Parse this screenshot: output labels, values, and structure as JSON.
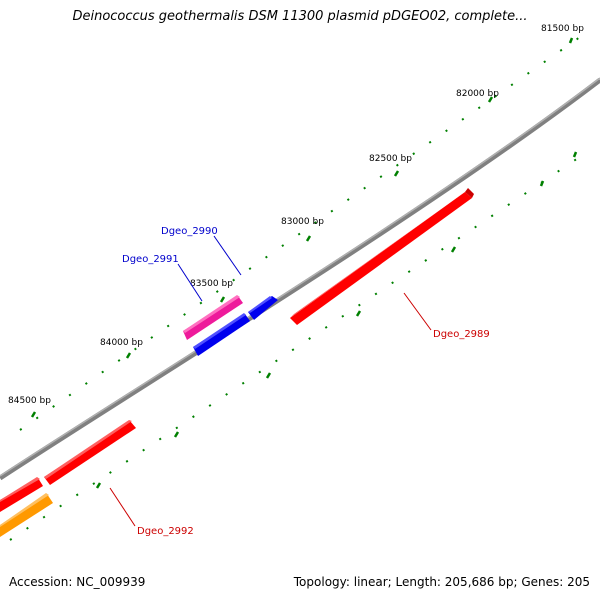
{
  "title": "Deinococcus geothermalis DSM 11300 plasmid pDGEO02, complete...",
  "footer": {
    "accession_label": "Accession: NC_009939",
    "summary_label": "Topology: linear; Length: 205,686 bp; Genes: 205"
  },
  "scale_ticks": [
    {
      "label": "81500 bp"
    },
    {
      "label": "82000 bp"
    },
    {
      "label": "82500 bp"
    },
    {
      "label": "83000 bp"
    },
    {
      "label": "83500 bp"
    },
    {
      "label": "84000 bp"
    },
    {
      "label": "84500 bp"
    }
  ],
  "genes": [
    {
      "name": "Dgeo_2989",
      "strand": "plus",
      "color": "#ff0000",
      "labeled": true,
      "label_color": "#cc0000"
    },
    {
      "name": "Dgeo_2990",
      "strand": "plus",
      "color": "#0000ee",
      "labeled": true,
      "label_color": "#0000cc"
    },
    {
      "name": "Dgeo_2991",
      "strand": "minus",
      "color": "#0000ee",
      "labeled": true,
      "label_color": "#0000cc"
    },
    {
      "name": "gene-magenta",
      "strand": "minus",
      "color": "#ee1a9b",
      "labeled": false
    },
    {
      "name": "Dgeo_2992",
      "strand": "plus",
      "color": "#ff0000",
      "labeled": true,
      "label_color": "#cc0000"
    },
    {
      "name": "gene-red-left",
      "strand": "minus",
      "color": "#ff0000",
      "labeled": false
    },
    {
      "name": "gene-orange",
      "strand": "minus",
      "color": "#ff9900",
      "labeled": false
    }
  ],
  "colors": {
    "backbone": "#808080",
    "tick_marks": "#008000"
  }
}
